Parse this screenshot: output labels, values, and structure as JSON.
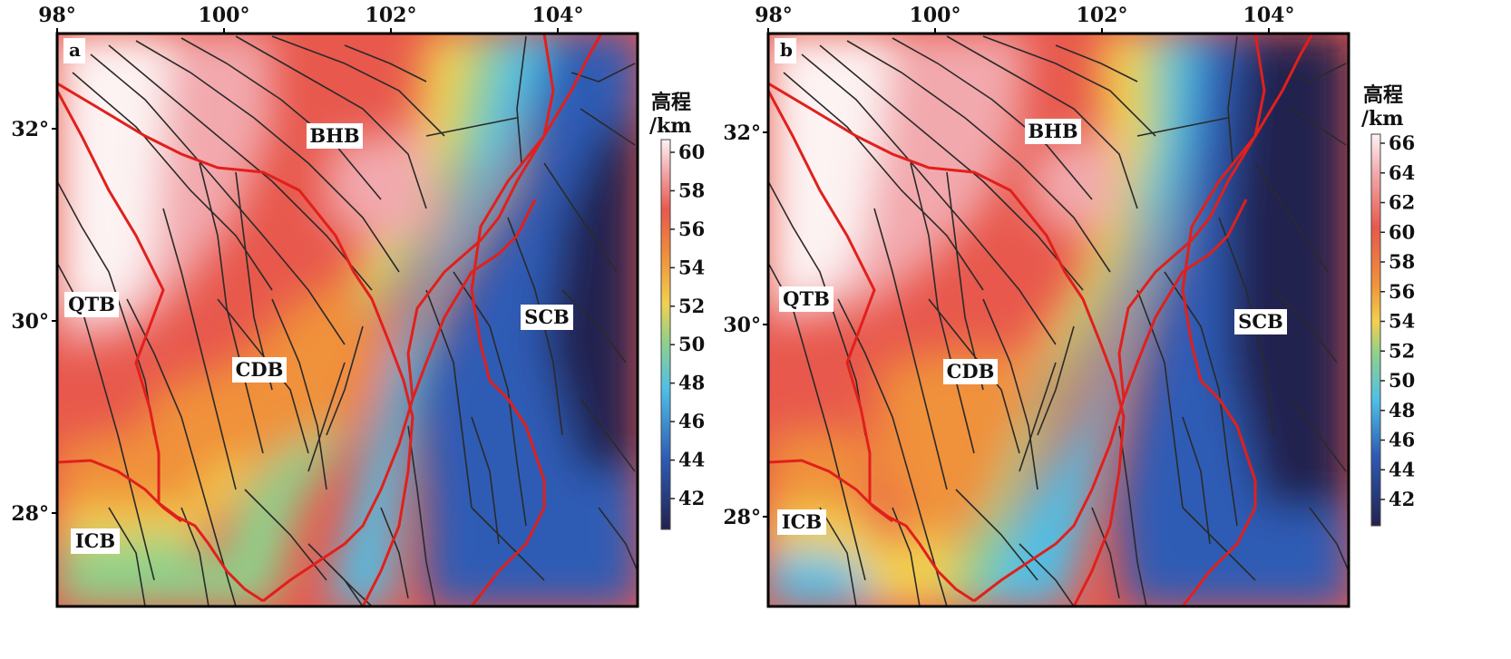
{
  "panels": [
    {
      "id": "a",
      "letter": "a",
      "lon_ticks": [
        "98°",
        "100°",
        "102°",
        "104°"
      ],
      "lat_ticks": [
        "32°",
        "30°",
        "28°"
      ],
      "regions": [
        "BHB",
        "QTB",
        "CDB",
        "SCB",
        "ICB"
      ],
      "colorbar": {
        "title_line1": "高程",
        "title_line2": "/km",
        "ticks": [
          "60",
          "58",
          "56",
          "54",
          "52",
          "50",
          "48",
          "46",
          "44",
          "42"
        ]
      }
    },
    {
      "id": "b",
      "letter": "b",
      "lon_ticks": [
        "98°",
        "100°",
        "102°",
        "104°"
      ],
      "lat_ticks": [
        "32°",
        "30°",
        "28°"
      ],
      "regions": [
        "BHB",
        "QTB",
        "CDB",
        "SCB",
        "ICB"
      ],
      "colorbar": {
        "title_line1": "高程",
        "title_line2": "/km",
        "ticks": [
          "66",
          "64",
          "62",
          "60",
          "58",
          "56",
          "54",
          "52",
          "50",
          "48",
          "46",
          "44",
          "42"
        ]
      }
    }
  ],
  "palette": {
    "low": "#23224f",
    "blue": "#2d5bb5",
    "cyan": "#4fbfe6",
    "green": "#8fd18a",
    "yellow": "#f2d04e",
    "orange": "#f0913a",
    "red": "#e8584c",
    "pink": "#f2a9ad",
    "high": "#fdf3f3",
    "fault_major": "#e0201c",
    "fault_minor": "#2a2a2a"
  }
}
